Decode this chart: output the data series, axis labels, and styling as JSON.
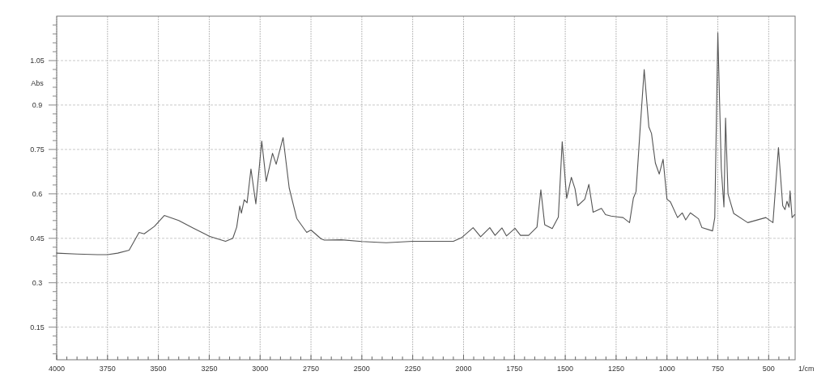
{
  "chart_data": {
    "type": "line",
    "xlabel": "1/cm",
    "ylabel": "Abs",
    "xlim": [
      4000,
      370
    ],
    "ylim": [
      0.04,
      1.2
    ],
    "grid": true,
    "xticks": [
      4000,
      {
        "value": 3950,
        "label": null
      },
      {
        "value": 3900,
        "label": null
      },
      {
        "value": 3850,
        "label": null
      },
      {
        "value": 3800,
        "label": null
      },
      3750,
      {
        "value": 3700,
        "label": null
      },
      {
        "value": 3650,
        "label": null
      },
      {
        "value": 3600,
        "label": null
      },
      {
        "value": 3550,
        "label": null
      },
      3500,
      {
        "value": 3450,
        "label": null
      },
      {
        "value": 3400,
        "label": null
      },
      {
        "value": 3350,
        "label": null
      },
      {
        "value": 3300,
        "label": null
      },
      3250,
      {
        "value": 3200,
        "label": null
      },
      {
        "value": 3150,
        "label": null
      },
      {
        "value": 3100,
        "label": null
      },
      {
        "value": 3050,
        "label": null
      },
      3000,
      {
        "value": 2950,
        "label": null
      },
      {
        "value": 2900,
        "label": null
      },
      {
        "value": 2850,
        "label": null
      },
      {
        "value": 2800,
        "label": null
      },
      2750,
      {
        "value": 2700,
        "label": null
      },
      {
        "value": 2650,
        "label": null
      },
      {
        "value": 2600,
        "label": null
      },
      {
        "value": 2550,
        "label": null
      },
      2500,
      {
        "value": 2450,
        "label": null
      },
      {
        "value": 2400,
        "label": null
      },
      {
        "value": 2350,
        "label": null
      },
      {
        "value": 2300,
        "label": null
      },
      2250,
      {
        "value": 2200,
        "label": null
      },
      {
        "value": 2150,
        "label": null
      },
      {
        "value": 2100,
        "label": null
      },
      {
        "value": 2050,
        "label": null
      },
      2000,
      {
        "value": 1950,
        "label": null
      },
      {
        "value": 1900,
        "label": null
      },
      {
        "value": 1850,
        "label": null
      },
      {
        "value": 1800,
        "label": null
      },
      1750,
      {
        "value": 1700,
        "label": null
      },
      {
        "value": 1650,
        "label": null
      },
      {
        "value": 1600,
        "label": null
      },
      {
        "value": 1550,
        "label": null
      },
      1500,
      {
        "value": 1450,
        "label": null
      },
      {
        "value": 1400,
        "label": null
      },
      {
        "value": 1350,
        "label": null
      },
      {
        "value": 1300,
        "label": null
      },
      1250,
      {
        "value": 1200,
        "label": null
      },
      {
        "value": 1150,
        "label": null
      },
      {
        "value": 1100,
        "label": null
      },
      {
        "value": 1050,
        "label": null
      },
      1000,
      {
        "value": 950,
        "label": null
      },
      {
        "value": 900,
        "label": null
      },
      {
        "value": 850,
        "label": null
      },
      {
        "value": 800,
        "label": null
      },
      750,
      {
        "value": 700,
        "label": null
      },
      {
        "value": 650,
        "label": null
      },
      {
        "value": 600,
        "label": null
      },
      {
        "value": 550,
        "label": null
      },
      500,
      {
        "value": 450,
        "label": null
      },
      {
        "value": 400,
        "label": null
      }
    ],
    "yticks": [
      {
        "value": 0.06,
        "label": null
      },
      {
        "value": 0.09,
        "label": null
      },
      {
        "value": 0.12,
        "label": null
      },
      0.15,
      {
        "value": 0.18,
        "label": null
      },
      {
        "value": 0.21,
        "label": null
      },
      {
        "value": 0.24,
        "label": null
      },
      {
        "value": 0.27,
        "label": null
      },
      0.3,
      {
        "value": 0.33,
        "label": null
      },
      {
        "value": 0.36,
        "label": null
      },
      {
        "value": 0.39,
        "label": null
      },
      {
        "value": 0.42,
        "label": null
      },
      0.45,
      {
        "value": 0.48,
        "label": null
      },
      {
        "value": 0.51,
        "label": null
      },
      {
        "value": 0.54,
        "label": null
      },
      {
        "value": 0.57,
        "label": null
      },
      0.6,
      {
        "value": 0.63,
        "label": null
      },
      {
        "value": 0.66,
        "label": null
      },
      {
        "value": 0.69,
        "label": null
      },
      {
        "value": 0.72,
        "label": null
      },
      0.75,
      {
        "value": 0.78,
        "label": null
      },
      {
        "value": 0.81,
        "label": null
      },
      {
        "value": 0.84,
        "label": null
      },
      {
        "value": 0.87,
        "label": null
      },
      0.9,
      {
        "value": 0.93,
        "label": null
      },
      {
        "value": 0.96,
        "label": null
      },
      {
        "value": 0.99,
        "label": null
      },
      {
        "value": 1.02,
        "label": null
      },
      1.05,
      {
        "value": 1.08,
        "label": null
      },
      {
        "value": 1.11,
        "label": null
      },
      {
        "value": 1.14,
        "label": null
      },
      {
        "value": 1.17,
        "label": null
      }
    ],
    "series": [
      {
        "color": "#555555",
        "x": [
          4000,
          3900,
          3800,
          3750,
          3700,
          3644,
          3595,
          3570,
          3520,
          3471,
          3400,
          3330,
          3250,
          3170,
          3134,
          3115,
          3100,
          3092,
          3078,
          3064,
          3045,
          3021,
          2992,
          2970,
          2939,
          2921,
          2887,
          2857,
          2820,
          2771,
          2750,
          2700,
          2684,
          2600,
          2500,
          2380,
          2250,
          2150,
          2050,
          2010,
          1953,
          1916,
          1871,
          1845,
          1811,
          1789,
          1747,
          1720,
          1680,
          1639,
          1620,
          1601,
          1564,
          1534,
          1515,
          1493,
          1470,
          1452,
          1439,
          1404,
          1384,
          1363,
          1322,
          1302,
          1275,
          1216,
          1184,
          1165,
          1152,
          1133,
          1112,
          1089,
          1076,
          1057,
          1038,
          1019,
          1000,
          983,
          948,
          925,
          908,
          885,
          845,
          828,
          776,
          765,
          750,
          733,
          720,
          712,
          700,
          672,
          603,
          514,
          479,
          452,
          431,
          420,
          410,
          400,
          395,
          385,
          372
        ],
        "values": [
          0.4,
          0.397,
          0.395,
          0.395,
          0.4,
          0.41,
          0.47,
          0.465,
          0.49,
          0.527,
          0.51,
          0.485,
          0.457,
          0.44,
          0.45,
          0.488,
          0.559,
          0.535,
          0.58,
          0.57,
          0.684,
          0.566,
          0.778,
          0.642,
          0.737,
          0.7,
          0.79,
          0.62,
          0.517,
          0.47,
          0.478,
          0.448,
          0.444,
          0.445,
          0.439,
          0.435,
          0.44,
          0.44,
          0.44,
          0.452,
          0.486,
          0.455,
          0.486,
          0.46,
          0.485,
          0.458,
          0.484,
          0.46,
          0.46,
          0.488,
          0.614,
          0.496,
          0.483,
          0.522,
          0.776,
          0.585,
          0.656,
          0.617,
          0.56,
          0.582,
          0.632,
          0.538,
          0.551,
          0.53,
          0.525,
          0.52,
          0.503,
          0.586,
          0.608,
          0.808,
          1.02,
          0.826,
          0.804,
          0.704,
          0.667,
          0.717,
          0.582,
          0.573,
          0.52,
          0.536,
          0.512,
          0.536,
          0.516,
          0.486,
          0.475,
          0.52,
          1.144,
          0.686,
          0.556,
          0.856,
          0.6,
          0.534,
          0.503,
          0.52,
          0.503,
          0.756,
          0.56,
          0.547,
          0.575,
          0.555,
          0.61,
          0.52,
          0.53
        ]
      }
    ]
  }
}
